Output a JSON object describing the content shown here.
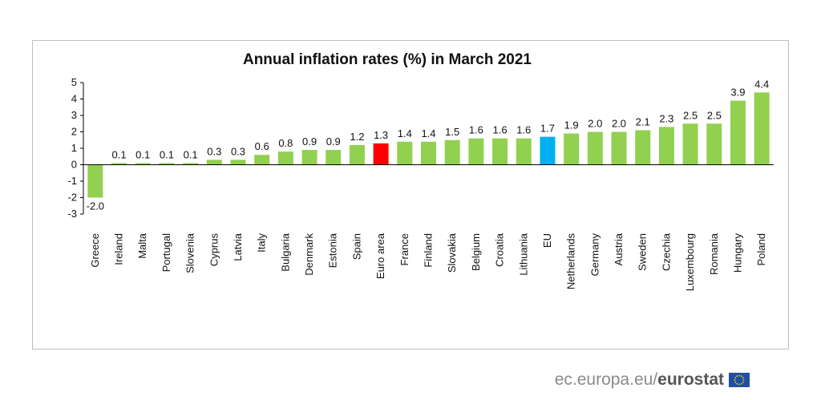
{
  "chart_data": {
    "type": "bar",
    "title": "Annual inflation rates (%) in March 2021",
    "xlabel": "",
    "ylabel": "",
    "ylim": [
      -3,
      5
    ],
    "yticks": [
      5,
      4,
      3,
      2,
      1,
      0,
      -1,
      -2,
      -3
    ],
    "yticks_labels": [
      "5",
      "4",
      "3",
      "2",
      "1",
      "0",
      "-1",
      "-2",
      "-3"
    ],
    "grid": false,
    "legend": "none",
    "categories": [
      "Greece",
      "Ireland",
      "Malta",
      "Portugal",
      "Slovenia",
      "Cyprus",
      "Latvia",
      "Italy",
      "Bulgaria",
      "Denmark",
      "Estonia",
      "Spain",
      "Euro area",
      "France",
      "Finland",
      "Slovakia",
      "Belgium",
      "Croatia",
      "Lithuania",
      "EU",
      "Netherlands",
      "Germany",
      "Austria",
      "Sweden",
      "Czechia",
      "Luxembourg",
      "Romania",
      "Hungary",
      "Poland"
    ],
    "values": [
      -2.0,
      0.1,
      0.1,
      0.1,
      0.1,
      0.3,
      0.3,
      0.6,
      0.8,
      0.9,
      0.9,
      1.2,
      1.3,
      1.4,
      1.4,
      1.5,
      1.6,
      1.6,
      1.6,
      1.7,
      1.9,
      2.0,
      2.0,
      2.1,
      2.3,
      2.5,
      2.5,
      3.9,
      4.4
    ],
    "value_labels": [
      "-2.0",
      "0.1",
      "0.1",
      "0.1",
      "0.1",
      "0.3",
      "0.3",
      "0.6",
      "0.8",
      "0.9",
      "0.9",
      "1.2",
      "1.3",
      "1.4",
      "1.4",
      "1.5",
      "1.6",
      "1.6",
      "1.6",
      "1.7",
      "1.9",
      "2.0",
      "2.0",
      "2.1",
      "2.3",
      "2.5",
      "2.5",
      "3.9",
      "4.4"
    ],
    "colors": {
      "default": "#92d050",
      "Euro area": "#ff0000",
      "EU": "#00b0f0"
    }
  },
  "source": {
    "text": "ec.europa.eu/",
    "brand": "eurostat",
    "flag_icon": "eu-flag-icon"
  }
}
